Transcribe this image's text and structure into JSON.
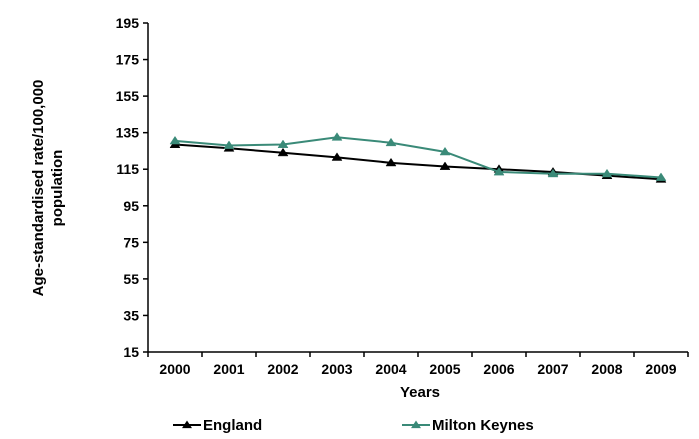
{
  "chart_data": {
    "type": "line",
    "title": "",
    "xlabel": "Years",
    "ylabel": "Age-standardised rate/100,000 population",
    "ylabel_lines": [
      "Age-standardised rate/100,000",
      "population"
    ],
    "x": [
      "2000",
      "2001",
      "2002",
      "2003",
      "2004",
      "2005",
      "2006",
      "2007",
      "2008",
      "2009"
    ],
    "yticks": [
      "195",
      "175",
      "155",
      "135",
      "115",
      "95",
      "75",
      "55",
      "35",
      "15"
    ],
    "ylim": [
      15,
      195
    ],
    "grid": false,
    "legend_position": "bottom",
    "series": [
      {
        "name": "England",
        "color": "#000000",
        "marker": "triangle",
        "values": [
          128.5,
          126.5,
          124,
          121.5,
          118.5,
          116.5,
          115,
          113.5,
          111.5,
          109.5
        ]
      },
      {
        "name": "Milton Keynes",
        "color": "#3a8a78",
        "marker": "triangle",
        "values": [
          130.5,
          128,
          128.5,
          132.5,
          129.5,
          124.5,
          113.5,
          112.5,
          112.5,
          110.5
        ]
      }
    ]
  }
}
